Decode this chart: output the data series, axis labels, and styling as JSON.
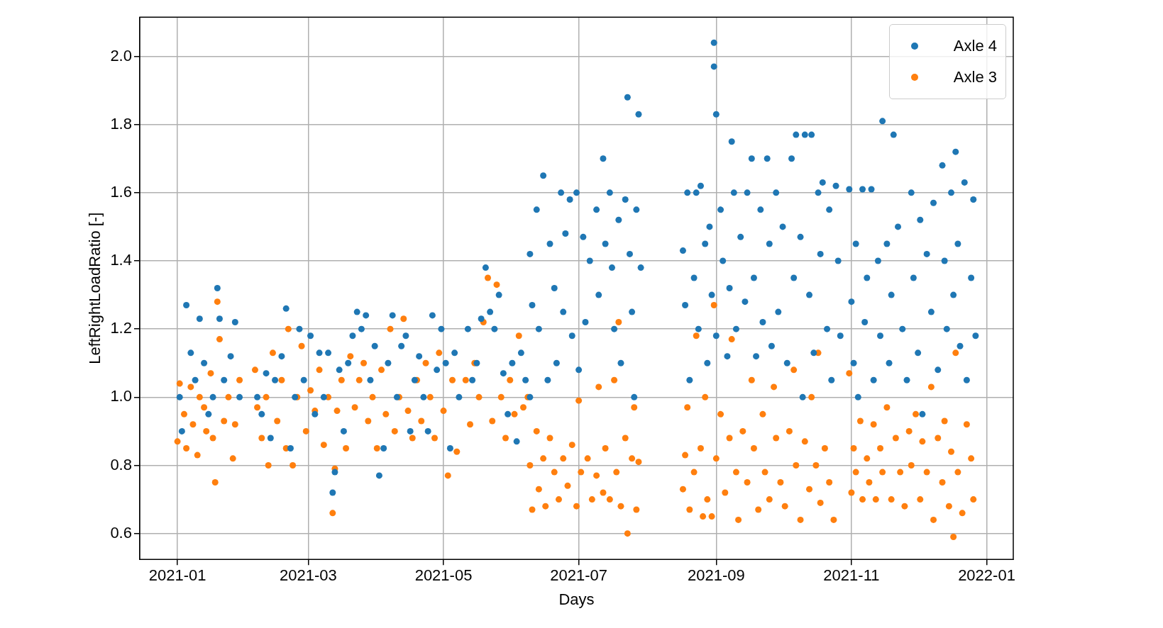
{
  "chart_data": {
    "type": "scatter",
    "xlabel": "Days",
    "ylabel": "LeftRightLoadRatio [-]",
    "xlim": [
      "2020-12-15",
      "2022-01-13"
    ],
    "xticks": [
      "2021-01",
      "2021-03",
      "2021-05",
      "2021-07",
      "2021-09",
      "2021-11",
      "2022-01"
    ],
    "ylim": [
      0.524,
      2.115
    ],
    "yticks": [
      0.6,
      0.8,
      {
        "value": 1,
        "label": "1.0"
      },
      1.2,
      1.4,
      1.6,
      1.8,
      {
        "value": 2,
        "label": "2.0"
      }
    ],
    "grid": true,
    "legend": "top right",
    "marker": "circle",
    "series": [
      {
        "name": "Axle 4",
        "color": "#1f77b4",
        "x": [
          "2021-01-02",
          "2021-01-03",
          "2021-01-05",
          "2021-01-07",
          "2021-01-09",
          "2021-01-11",
          "2021-01-13",
          "2021-01-15",
          "2021-01-17",
          "2021-01-19",
          "2021-01-20",
          "2021-01-22",
          "2021-01-25",
          "2021-01-27",
          "2021-01-29",
          "2021-02-06",
          "2021-02-08",
          "2021-02-10",
          "2021-02-12",
          "2021-02-14",
          "2021-02-17",
          "2021-02-19",
          "2021-02-21",
          "2021-02-23",
          "2021-02-25",
          "2021-02-27",
          "2021-03-02",
          "2021-03-04",
          "2021-03-06",
          "2021-03-08",
          "2021-03-10",
          "2021-03-12",
          "2021-03-13",
          "2021-03-15",
          "2021-03-17",
          "2021-03-19",
          "2021-03-21",
          "2021-03-23",
          "2021-03-25",
          "2021-03-27",
          "2021-03-29",
          "2021-03-31",
          "2021-04-02",
          "2021-04-04",
          "2021-04-06",
          "2021-04-08",
          "2021-04-10",
          "2021-04-12",
          "2021-04-14",
          "2021-04-16",
          "2021-04-18",
          "2021-04-20",
          "2021-04-22",
          "2021-04-24",
          "2021-04-26",
          "2021-04-28",
          "2021-04-30",
          "2021-05-02",
          "2021-05-04",
          "2021-05-06",
          "2021-05-08",
          "2021-05-12",
          "2021-05-14",
          "2021-05-16",
          "2021-05-18",
          "2021-05-20",
          "2021-05-22",
          "2021-05-24",
          "2021-05-26",
          "2021-05-28",
          "2021-05-30",
          "2021-06-01",
          "2021-06-03",
          "2021-06-05",
          "2021-06-07",
          "2021-06-09",
          "2021-06-09",
          "2021-06-10",
          "2021-06-12",
          "2021-06-13",
          "2021-06-15",
          "2021-06-17",
          "2021-06-18",
          "2021-06-20",
          "2021-06-21",
          "2021-06-23",
          "2021-06-24",
          "2021-06-25",
          "2021-06-27",
          "2021-06-28",
          "2021-06-30",
          "2021-07-01",
          "2021-07-03",
          "2021-07-04",
          "2021-07-06",
          "2021-07-09",
          "2021-07-10",
          "2021-07-12",
          "2021-07-13",
          "2021-07-15",
          "2021-07-16",
          "2021-07-17",
          "2021-07-19",
          "2021-07-20",
          "2021-07-22",
          "2021-07-23",
          "2021-07-24",
          "2021-07-25",
          "2021-07-26",
          "2021-07-27",
          "2021-07-28",
          "2021-07-29",
          "2021-08-17",
          "2021-08-18",
          "2021-08-19",
          "2021-08-20",
          "2021-08-22",
          "2021-08-23",
          "2021-08-24",
          "2021-08-25",
          "2021-08-27",
          "2021-08-28",
          "2021-08-29",
          "2021-08-30",
          "2021-08-31",
          "2021-08-31",
          "2021-09-01",
          "2021-09-01",
          "2021-09-03",
          "2021-09-04",
          "2021-09-06",
          "2021-09-07",
          "2021-09-08",
          "2021-09-09",
          "2021-09-10",
          "2021-09-12",
          "2021-09-14",
          "2021-09-15",
          "2021-09-17",
          "2021-09-18",
          "2021-09-19",
          "2021-09-21",
          "2021-09-22",
          "2021-09-24",
          "2021-09-25",
          "2021-09-26",
          "2021-09-28",
          "2021-09-29",
          "2021-10-01",
          "2021-10-03",
          "2021-10-05",
          "2021-10-06",
          "2021-10-07",
          "2021-10-09",
          "2021-10-10",
          "2021-10-11",
          "2021-10-13",
          "2021-10-14",
          "2021-10-15",
          "2021-10-17",
          "2021-10-18",
          "2021-10-19",
          "2021-10-21",
          "2021-10-22",
          "2021-10-23",
          "2021-10-25",
          "2021-10-26",
          "2021-10-27",
          "2021-10-31",
          "2021-11-01",
          "2021-11-02",
          "2021-11-03",
          "2021-11-04",
          "2021-11-06",
          "2021-11-07",
          "2021-11-08",
          "2021-11-10",
          "2021-11-11",
          "2021-11-13",
          "2021-11-14",
          "2021-11-15",
          "2021-11-17",
          "2021-11-18",
          "2021-11-19",
          "2021-11-20",
          "2021-11-22",
          "2021-11-24",
          "2021-11-26",
          "2021-11-28",
          "2021-11-29",
          "2021-12-01",
          "2021-12-02",
          "2021-12-03",
          "2021-12-05",
          "2021-12-07",
          "2021-12-08",
          "2021-12-10",
          "2021-12-12",
          "2021-12-13",
          "2021-12-14",
          "2021-12-16",
          "2021-12-17",
          "2021-12-18",
          "2021-12-19",
          "2021-12-20",
          "2021-12-22",
          "2021-12-23",
          "2021-12-25",
          "2021-12-26",
          "2021-12-27"
        ],
        "values": [
          1.0,
          0.9,
          1.27,
          1.13,
          1.05,
          1.23,
          1.1,
          0.95,
          1.0,
          1.32,
          1.23,
          1.05,
          1.12,
          1.22,
          1.0,
          1.0,
          0.95,
          1.07,
          0.88,
          1.05,
          1.12,
          1.26,
          0.85,
          1.0,
          1.2,
          1.05,
          1.18,
          0.95,
          1.13,
          1.0,
          1.13,
          0.72,
          0.78,
          1.08,
          0.9,
          1.1,
          1.18,
          1.25,
          1.2,
          1.24,
          1.05,
          1.15,
          0.77,
          0.85,
          1.1,
          1.24,
          1.0,
          1.15,
          1.18,
          0.9,
          1.05,
          1.12,
          1.0,
          0.9,
          1.24,
          1.08,
          1.2,
          1.1,
          0.85,
          1.13,
          1.0,
          1.2,
          1.05,
          1.1,
          1.23,
          1.38,
          1.25,
          1.2,
          1.3,
          1.07,
          0.95,
          1.1,
          0.87,
          1.13,
          1.05,
          1.0,
          1.42,
          1.27,
          1.55,
          1.2,
          1.65,
          1.05,
          1.45,
          1.32,
          1.1,
          1.6,
          1.25,
          1.48,
          1.58,
          1.18,
          1.6,
          1.08,
          1.47,
          1.22,
          1.4,
          1.55,
          1.3,
          1.7,
          1.45,
          1.6,
          1.38,
          1.2,
          1.52,
          1.1,
          1.58,
          1.88,
          1.42,
          1.25,
          1.0,
          1.55,
          1.83,
          1.38,
          1.43,
          1.27,
          1.6,
          1.05,
          1.35,
          1.6,
          1.2,
          1.62,
          1.45,
          1.1,
          1.5,
          1.3,
          2.04,
          1.97,
          1.83,
          1.18,
          1.55,
          1.4,
          1.12,
          1.32,
          1.75,
          1.6,
          1.2,
          1.47,
          1.28,
          1.6,
          1.7,
          1.35,
          1.12,
          1.55,
          1.22,
          1.7,
          1.45,
          1.15,
          1.6,
          1.25,
          1.5,
          1.1,
          1.7,
          1.35,
          1.77,
          1.47,
          1.0,
          1.77,
          1.3,
          1.77,
          1.13,
          1.6,
          1.42,
          1.63,
          1.2,
          1.55,
          1.05,
          1.62,
          1.4,
          1.18,
          1.61,
          1.28,
          1.1,
          1.45,
          1.0,
          1.61,
          1.22,
          1.35,
          1.61,
          1.05,
          1.4,
          1.18,
          1.81,
          1.45,
          1.1,
          1.3,
          1.77,
          1.5,
          1.2,
          1.05,
          1.6,
          1.35,
          1.13,
          1.52,
          0.95,
          1.42,
          1.25,
          1.57,
          1.08,
          1.68,
          1.4,
          1.2,
          1.6,
          1.3,
          1.72,
          1.45,
          1.15,
          1.63,
          1.05,
          1.35,
          1.58,
          1.18
        ]
      },
      {
        "name": "Axle 3",
        "color": "#ff7f0e",
        "x": [
          "2021-01-01",
          "2021-01-02",
          "2021-01-04",
          "2021-01-05",
          "2021-01-07",
          "2021-01-08",
          "2021-01-10",
          "2021-01-11",
          "2021-01-13",
          "2021-01-14",
          "2021-01-16",
          "2021-01-17",
          "2021-01-18",
          "2021-01-19",
          "2021-01-20",
          "2021-01-22",
          "2021-01-24",
          "2021-01-26",
          "2021-01-27",
          "2021-01-29",
          "2021-02-05",
          "2021-02-06",
          "2021-02-08",
          "2021-02-10",
          "2021-02-11",
          "2021-02-13",
          "2021-02-15",
          "2021-02-17",
          "2021-02-19",
          "2021-02-20",
          "2021-02-22",
          "2021-02-24",
          "2021-02-26",
          "2021-02-28",
          "2021-03-02",
          "2021-03-04",
          "2021-03-06",
          "2021-03-08",
          "2021-03-10",
          "2021-03-12",
          "2021-03-13",
          "2021-03-14",
          "2021-03-16",
          "2021-03-18",
          "2021-03-20",
          "2021-03-22",
          "2021-03-24",
          "2021-03-26",
          "2021-03-28",
          "2021-03-30",
          "2021-04-01",
          "2021-04-03",
          "2021-04-05",
          "2021-04-07",
          "2021-04-09",
          "2021-04-11",
          "2021-04-13",
          "2021-04-15",
          "2021-04-17",
          "2021-04-19",
          "2021-04-21",
          "2021-04-23",
          "2021-04-25",
          "2021-04-27",
          "2021-04-29",
          "2021-05-01",
          "2021-05-03",
          "2021-05-05",
          "2021-05-07",
          "2021-05-11",
          "2021-05-13",
          "2021-05-15",
          "2021-05-17",
          "2021-05-19",
          "2021-05-21",
          "2021-05-23",
          "2021-05-25",
          "2021-05-27",
          "2021-05-29",
          "2021-05-31",
          "2021-06-02",
          "2021-06-04",
          "2021-06-06",
          "2021-06-08",
          "2021-06-09",
          "2021-06-10",
          "2021-06-12",
          "2021-06-13",
          "2021-06-15",
          "2021-06-16",
          "2021-06-18",
          "2021-06-20",
          "2021-06-22",
          "2021-06-24",
          "2021-06-26",
          "2021-06-28",
          "2021-06-30",
          "2021-07-01",
          "2021-07-02",
          "2021-07-05",
          "2021-07-07",
          "2021-07-09",
          "2021-07-10",
          "2021-07-12",
          "2021-07-13",
          "2021-07-15",
          "2021-07-17",
          "2021-07-18",
          "2021-07-19",
          "2021-07-20",
          "2021-07-22",
          "2021-07-23",
          "2021-07-25",
          "2021-07-26",
          "2021-07-27",
          "2021-07-28",
          "2021-08-17",
          "2021-08-18",
          "2021-08-19",
          "2021-08-20",
          "2021-08-22",
          "2021-08-23",
          "2021-08-25",
          "2021-08-26",
          "2021-08-27",
          "2021-08-28",
          "2021-08-30",
          "2021-08-31",
          "2021-09-01",
          "2021-09-03",
          "2021-09-05",
          "2021-09-07",
          "2021-09-08",
          "2021-09-10",
          "2021-09-11",
          "2021-09-13",
          "2021-09-15",
          "2021-09-17",
          "2021-09-18",
          "2021-09-20",
          "2021-09-22",
          "2021-09-23",
          "2021-09-25",
          "2021-09-27",
          "2021-09-28",
          "2021-09-30",
          "2021-10-02",
          "2021-10-04",
          "2021-10-06",
          "2021-10-07",
          "2021-10-09",
          "2021-10-11",
          "2021-10-13",
          "2021-10-14",
          "2021-10-16",
          "2021-10-17",
          "2021-10-18",
          "2021-10-20",
          "2021-10-22",
          "2021-10-24",
          "2021-10-31",
          "2021-11-01",
          "2021-11-02",
          "2021-11-03",
          "2021-11-05",
          "2021-11-06",
          "2021-11-08",
          "2021-11-09",
          "2021-11-11",
          "2021-11-12",
          "2021-11-14",
          "2021-11-15",
          "2021-11-17",
          "2021-11-19",
          "2021-11-21",
          "2021-11-23",
          "2021-11-25",
          "2021-11-27",
          "2021-11-28",
          "2021-11-30",
          "2021-12-02",
          "2021-12-03",
          "2021-12-05",
          "2021-12-07",
          "2021-12-08",
          "2021-12-10",
          "2021-12-12",
          "2021-12-13",
          "2021-12-15",
          "2021-12-16",
          "2021-12-17",
          "2021-12-18",
          "2021-12-19",
          "2021-12-21",
          "2021-12-23",
          "2021-12-25",
          "2021-12-26"
        ],
        "values": [
          0.87,
          1.04,
          0.95,
          0.85,
          1.03,
          0.92,
          0.83,
          1.0,
          0.97,
          0.9,
          1.07,
          0.88,
          0.75,
          1.28,
          1.17,
          0.93,
          1.0,
          0.82,
          0.92,
          1.05,
          1.08,
          0.97,
          0.88,
          1.0,
          0.8,
          1.13,
          0.93,
          1.05,
          0.85,
          1.2,
          0.8,
          1.0,
          1.15,
          0.9,
          1.02,
          0.96,
          1.08,
          0.86,
          1.0,
          0.66,
          0.79,
          0.96,
          1.05,
          0.85,
          1.12,
          0.97,
          1.05,
          1.1,
          0.93,
          1.0,
          0.85,
          1.08,
          0.95,
          1.2,
          0.9,
          1.0,
          1.23,
          0.96,
          0.88,
          1.05,
          0.93,
          1.1,
          1.0,
          0.88,
          1.13,
          0.96,
          0.77,
          1.05,
          0.84,
          1.05,
          0.92,
          1.1,
          1.0,
          1.22,
          1.35,
          0.93,
          1.33,
          1.0,
          0.88,
          1.05,
          0.95,
          1.18,
          0.97,
          1.0,
          0.8,
          0.67,
          0.9,
          0.73,
          0.82,
          0.68,
          0.88,
          0.78,
          0.7,
          0.82,
          0.74,
          0.86,
          0.68,
          0.99,
          0.78,
          0.82,
          0.7,
          0.77,
          1.03,
          0.72,
          0.85,
          0.7,
          1.05,
          0.78,
          1.22,
          0.68,
          0.88,
          0.6,
          0.82,
          0.97,
          0.67,
          0.81,
          0.73,
          0.83,
          0.97,
          0.67,
          0.78,
          1.18,
          0.85,
          0.65,
          1.0,
          0.7,
          0.65,
          1.27,
          0.82,
          0.95,
          0.72,
          0.88,
          1.17,
          0.78,
          0.64,
          0.9,
          0.75,
          1.05,
          0.85,
          0.67,
          0.95,
          0.78,
          0.7,
          1.03,
          0.88,
          0.75,
          0.68,
          0.9,
          1.08,
          0.8,
          0.64,
          0.87,
          0.73,
          1.0,
          0.8,
          1.13,
          0.69,
          0.85,
          0.75,
          0.64,
          1.07,
          0.72,
          0.85,
          0.78,
          0.93,
          0.7,
          0.82,
          0.75,
          0.92,
          0.7,
          0.85,
          0.78,
          0.97,
          0.7,
          0.88,
          0.78,
          0.68,
          0.9,
          0.8,
          0.95,
          0.7,
          0.87,
          0.78,
          1.03,
          0.64,
          0.88,
          0.75,
          0.93,
          0.68,
          0.84,
          0.59,
          1.13,
          0.78,
          0.66,
          0.92,
          0.82,
          0.7
        ]
      }
    ]
  }
}
